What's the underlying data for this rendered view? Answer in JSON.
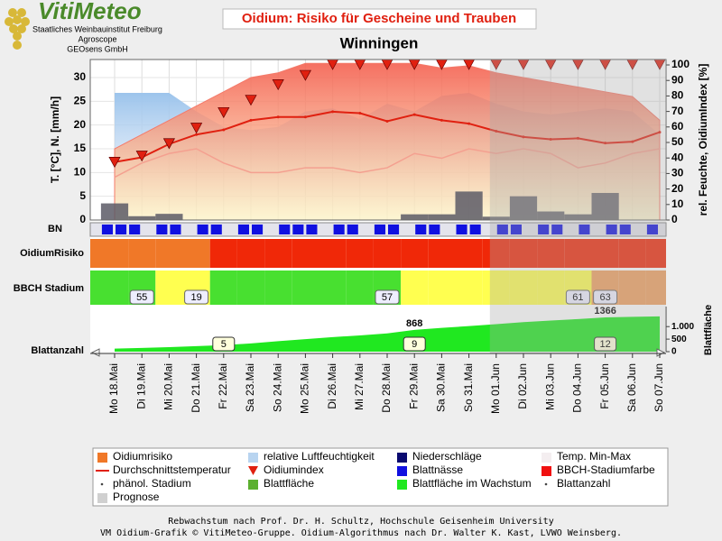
{
  "header": {
    "logo": "VitiMeteo",
    "lines": [
      "Staatliches Weinbauinstitut Freiburg",
      "Agroscope",
      "GEOsens GmbH"
    ]
  },
  "chart_data": {
    "type": "weather_composite",
    "title": "Oidium: Risiko für Gescheine und Trauben",
    "subtitle": "Winningen",
    "ylabel": "T. [°C], N. [mm/h]",
    "y2label": "rel. Feuchte, OidiumIndex [%]",
    "categories": [
      "Mo 18.Mai",
      "Di 19.Mai",
      "Mi 20.Mai",
      "Do 21.Mai",
      "Fr 22.Mai",
      "Sa 23.Mai",
      "So 24.Mai",
      "Mo 25.Mai",
      "Di 26.Mai",
      "Mi 27.Mai",
      "Do 28.Mai",
      "Fr 29.Mai",
      "Sa 30.Mai",
      "So 31.Mai",
      "Mo 01.Jun",
      "Di 02.Jun",
      "Mi 03.Jun",
      "Do 04.Jun",
      "Fr 05.Jun",
      "Sa 06.Jun",
      "So 07.Jun"
    ],
    "ylim": [
      0,
      33.8
    ],
    "yticks": [
      0,
      5,
      10,
      15,
      20,
      25,
      30
    ],
    "y2lim": [
      0,
      103.5
    ],
    "y2ticks": [
      0,
      10,
      20,
      30,
      40,
      50,
      60,
      70,
      80,
      90,
      100
    ],
    "forecast_from": 14,
    "temp_max": {
      "color": "#f47a6a",
      "values": [
        15,
        18,
        21,
        24,
        27,
        30,
        31,
        33,
        33,
        33,
        33,
        33,
        32,
        32.5,
        31,
        30,
        29,
        28,
        27,
        26,
        21
      ]
    },
    "temp_min": {
      "color": "#f4a090",
      "values": [
        9,
        12,
        14,
        15,
        12,
        10,
        10,
        11,
        11,
        10,
        11,
        14,
        13,
        15,
        14,
        15,
        14,
        11,
        12,
        14,
        15
      ]
    },
    "temperature": {
      "color": "#e02010",
      "values": [
        12.2,
        13.2,
        16,
        18,
        19,
        21,
        21.7,
        21.7,
        22.8,
        22.5,
        20.8,
        22.2,
        21,
        20.3,
        18.7,
        17.5,
        17,
        17.2,
        16.2,
        16.5,
        18.5
      ]
    },
    "humidity": {
      "color": "#9cc4ec",
      "axis": "y2",
      "values": [
        82,
        82,
        82,
        70,
        60,
        58,
        60,
        70,
        72,
        65,
        75,
        70,
        80,
        82,
        75,
        70,
        68,
        70,
        72,
        70,
        55
      ]
    },
    "precipitation": {
      "color": "#5c5a66",
      "values": [
        3.5,
        0.8,
        1.3,
        0,
        0,
        0,
        0,
        0,
        0,
        0,
        0,
        1.2,
        1.2,
        6,
        0.7,
        5,
        1.8,
        1.2,
        5.7,
        0,
        0
      ]
    },
    "oidium_index": {
      "color": "#e02010",
      "axis": "y2",
      "values": [
        37,
        41,
        49,
        59,
        69,
        77,
        87,
        93,
        100,
        100,
        100,
        100,
        100,
        100,
        100,
        100,
        100,
        100,
        100,
        100,
        100
      ]
    },
    "leaf_wetness": {
      "label": "BN",
      "color": "#1010e0",
      "values": [
        1,
        1,
        1,
        0,
        1,
        1,
        0,
        1,
        1,
        0,
        1,
        1,
        0,
        1,
        1,
        1,
        0,
        1,
        1,
        0,
        1,
        1,
        0,
        1,
        1,
        0,
        1,
        1,
        0,
        1,
        1,
        0,
        1,
        1,
        0,
        1,
        0,
        1,
        1,
        0,
        1,
        0
      ]
    },
    "risk": {
      "label": "OidiumRisiko",
      "colors": [
        "#f07828",
        "#f07828",
        "#f07828",
        "#f07828",
        "#f02808",
        "#f02808",
        "#f02808",
        "#f02808",
        "#f02808",
        "#f02808",
        "#f02808",
        "#f02808",
        "#f02808",
        "#f02808",
        "#f02808",
        "#f02808",
        "#f02808",
        "#f02808",
        "#f02808",
        "#f02808",
        "#f02808"
      ]
    },
    "bbch": {
      "label": "BBCH Stadium",
      "colors": [
        "#48e030",
        "#48e030",
        "#ffff50",
        "#ffff50",
        "#48e030",
        "#48e030",
        "#48e030",
        "#48e030",
        "#48e030",
        "#48e030",
        "#48e030",
        "#ffff50",
        "#ffff50",
        "#ffff50",
        "#ffff50",
        "#ffff50",
        "#ffff50",
        "#ffff50",
        "#f0a060",
        "#f0a060",
        "#f0a060"
      ],
      "values": [
        null,
        55,
        null,
        19,
        null,
        null,
        null,
        null,
        null,
        null,
        57,
        null,
        null,
        null,
        null,
        null,
        null,
        61,
        63,
        null,
        null
      ]
    },
    "leaf_area": {
      "label": "Blattfläche",
      "color": "#20e820",
      "ylim": [
        0,
        1800
      ],
      "yticks": [
        0,
        500,
        {
          "value": 1000,
          "label": "1.000"
        }
      ],
      "values": [
        120,
        150,
        180,
        220,
        260,
        330,
        420,
        500,
        580,
        650,
        730,
        868,
        950,
        1020,
        1100,
        1180,
        1240,
        1300,
        1366,
        1390,
        1410
      ],
      "value_labels": [
        null,
        null,
        null,
        null,
        null,
        null,
        null,
        null,
        null,
        null,
        null,
        "868",
        null,
        null,
        null,
        null,
        null,
        null,
        "1366",
        null,
        null
      ]
    },
    "leaf_count": {
      "label": "Blattanzahl",
      "values": [
        null,
        null,
        null,
        null,
        5,
        null,
        null,
        null,
        null,
        null,
        null,
        9,
        null,
        null,
        null,
        null,
        null,
        null,
        12,
        null,
        null
      ]
    },
    "legend": [
      {
        "label": "Oidiumrisiko",
        "color": "#f07828",
        "symbol": "square"
      },
      {
        "label": "relative Luftfeuchtigkeit",
        "color": "#b8d4f0",
        "symbol": "square"
      },
      {
        "label": "Niederschläge",
        "color": "#0a0a70",
        "symbol": "square"
      },
      {
        "label": "Temp. Min-Max",
        "color": "#f4eef0",
        "symbol": "square"
      },
      {
        "label": "Durchschnittstemperatur",
        "color": "#e02010",
        "symbol": "line"
      },
      {
        "label": "Oidiumindex",
        "color": "#e02010",
        "symbol": "triangle"
      },
      {
        "label": "Blattnässe",
        "color": "#1010e0",
        "symbol": "square"
      },
      {
        "label": "BBCH-Stadiumfarbe",
        "color": "#f01010",
        "symbol": "square"
      },
      {
        "label": "phänol. Stadium",
        "color": "#444444",
        "symbol": "dot"
      },
      {
        "label": "Blattfläche",
        "color": "#5cb030",
        "symbol": "square"
      },
      {
        "label": "Blattfläche im Wachstum",
        "color": "#20e820",
        "symbol": "square"
      },
      {
        "label": "Blattanzahl",
        "color": "#444444",
        "symbol": "dot"
      },
      {
        "label": "Prognose",
        "color": "#d0d0d0",
        "symbol": "square"
      }
    ]
  },
  "footer": [
    "Rebwachstum nach Prof. Dr. H. Schultz, Hochschule Geisenheim University",
    "VM Oidium-Grafik © VitiMeteo-Gruppe. Oidium-Algorithmus nach Dr. Walter K. Kast, LVWO Weinsberg."
  ]
}
